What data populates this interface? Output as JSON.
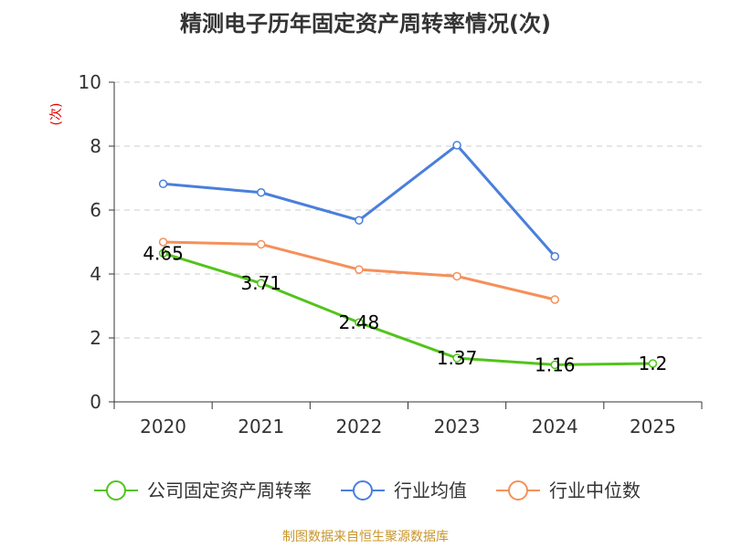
{
  "chart_data": {
    "type": "line",
    "title": "精测电子历年固定资产周转率情况(次)",
    "unit_label": "(次)",
    "categories": [
      "2020",
      "2021",
      "2022",
      "2023",
      "2024",
      "2025"
    ],
    "ylim": [
      0,
      10
    ],
    "yticks": [
      0,
      2,
      4,
      6,
      8,
      10
    ],
    "grid": true,
    "legend_position": "bottom",
    "series": [
      {
        "name": "公司固定资产周转率",
        "color": "#52c41a",
        "values": [
          4.65,
          3.71,
          2.48,
          1.37,
          1.16,
          1.2
        ],
        "labels": [
          "4.65",
          "3.71",
          "2.48",
          "1.37",
          "1.16",
          "1.2"
        ]
      },
      {
        "name": "行业均值",
        "color": "#4a7fdb",
        "values": [
          6.82,
          6.55,
          5.68,
          8.03,
          4.55,
          null
        ]
      },
      {
        "name": "行业中位数",
        "color": "#f5905a",
        "values": [
          5.0,
          4.93,
          4.14,
          3.93,
          3.2,
          null
        ]
      }
    ],
    "source": "制图数据来自恒生聚源数据库"
  }
}
